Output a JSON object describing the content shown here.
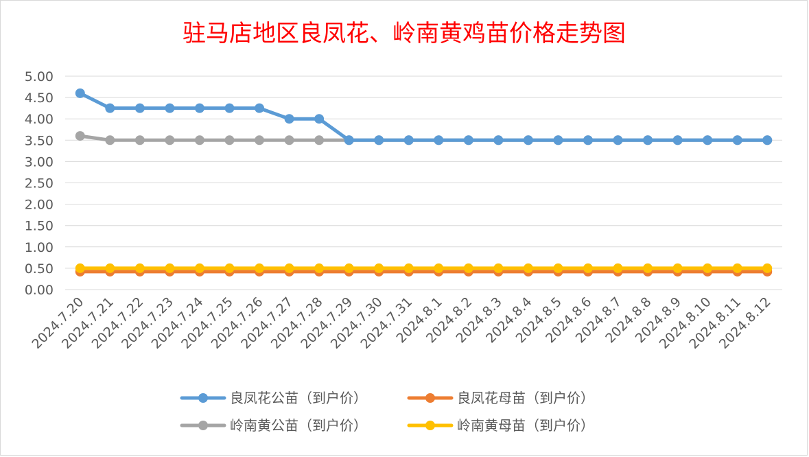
{
  "chart_data": {
    "type": "line",
    "title": "驻马店地区良凤花、岭南黄鸡苗价格走势图",
    "xlabel": "",
    "ylabel": "",
    "ylim": [
      0,
      5
    ],
    "yticks": [
      "0.00",
      "0.50",
      "1.00",
      "1.50",
      "2.00",
      "2.50",
      "3.00",
      "3.50",
      "4.00",
      "4.50",
      "5.00"
    ],
    "grid": true,
    "legend_position": "bottom",
    "x": [
      "2024.7.20",
      "2024.7.21",
      "2024.7.22",
      "2024.7.23",
      "2024.7.24",
      "2024.7.25",
      "2024.7.26",
      "2024.7.27",
      "2024.7.28",
      "2024.7.29",
      "2024.7.30",
      "2024.7.31",
      "2024.8.1",
      "2024.8.2",
      "2024.8.3",
      "2024.8.4",
      "2024.8.5",
      "2024.8.6",
      "2024.8.7",
      "2024.8.8",
      "2024.8.9",
      "2024.8.10",
      "2024.8.11",
      "2024.8.12"
    ],
    "series": [
      {
        "name": "良凤花公苗（到户价）",
        "color": "#5b9bd5",
        "values": [
          4.6,
          4.25,
          4.25,
          4.25,
          4.25,
          4.25,
          4.25,
          4.0,
          4.0,
          3.5,
          3.5,
          3.5,
          3.5,
          3.5,
          3.5,
          3.5,
          3.5,
          3.5,
          3.5,
          3.5,
          3.5,
          3.5,
          3.5,
          3.5
        ]
      },
      {
        "name": "良凤花母苗（到户价）",
        "color": "#ed7d31",
        "values": [
          0.42,
          0.42,
          0.42,
          0.42,
          0.42,
          0.42,
          0.42,
          0.42,
          0.42,
          0.42,
          0.42,
          0.42,
          0.42,
          0.42,
          0.42,
          0.42,
          0.42,
          0.42,
          0.42,
          0.42,
          0.42,
          0.42,
          0.42,
          0.42
        ]
      },
      {
        "name": "岭南黄公苗（到户价）",
        "color": "#a5a5a5",
        "values": [
          3.6,
          3.5,
          3.5,
          3.5,
          3.5,
          3.5,
          3.5,
          3.5,
          3.5,
          3.5,
          3.5,
          3.5,
          3.5,
          3.5,
          3.5,
          3.5,
          3.5,
          3.5,
          3.5,
          3.5,
          3.5,
          3.5,
          3.5,
          3.5
        ]
      },
      {
        "name": "岭南黄母苗（到户价）",
        "color": "#ffc000",
        "values": [
          0.5,
          0.5,
          0.5,
          0.5,
          0.5,
          0.5,
          0.5,
          0.5,
          0.5,
          0.5,
          0.5,
          0.5,
          0.5,
          0.5,
          0.5,
          0.5,
          0.5,
          0.5,
          0.5,
          0.5,
          0.5,
          0.5,
          0.5,
          0.5
        ]
      }
    ],
    "draw_order": [
      2,
      0,
      1,
      3
    ]
  }
}
